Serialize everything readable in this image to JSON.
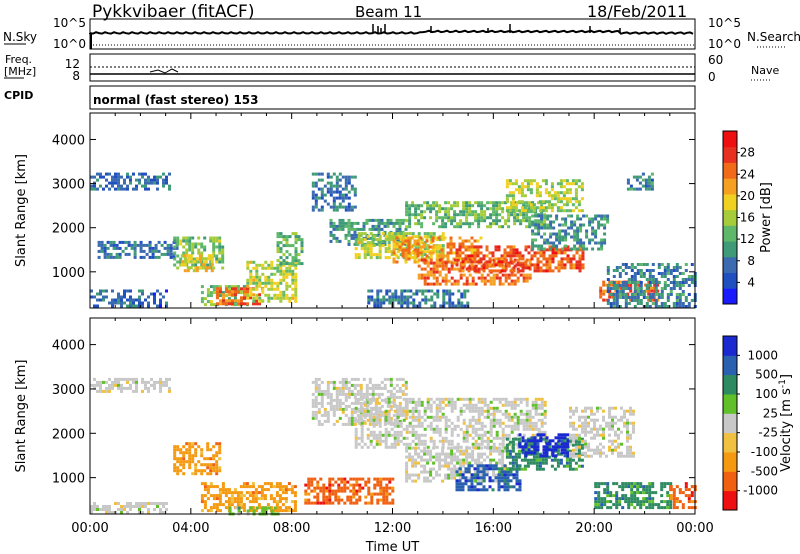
{
  "header": {
    "station": "Pykkvibaer (fitACF)",
    "beam": "Beam 11",
    "date": "18/Feb/2011"
  },
  "top_panels": {
    "nsky_label": "N.Sky",
    "nsearch_label": "N.Search",
    "noise_ticks": [
      "10^5",
      "10^0"
    ],
    "freq_label_line1": "Freq.",
    "freq_label_line2": "[MHz]",
    "freq_ticks": [
      "12",
      "8"
    ],
    "nave_label": "Nave",
    "nave_ticks": [
      "60",
      "0"
    ],
    "cpid_label": "CPID",
    "cpid_text": "normal (fast stereo) 153"
  },
  "chart_data": [
    {
      "type": "heatmap",
      "name": "power",
      "ylabel": "Slant Range [km]",
      "xlabel": "",
      "xlim": [
        "00:00",
        "00:00"
      ],
      "ylim": [
        180,
        4600
      ],
      "yticks": [
        1000,
        2000,
        3000,
        4000
      ],
      "colorbar": {
        "label": "Power [dB]",
        "ticks": [
          4,
          8,
          12,
          16,
          20,
          24,
          28
        ],
        "range": [
          0,
          32
        ],
        "colors": [
          "#1a1aff",
          "#2050c0",
          "#3a6ab0",
          "#3f9a78",
          "#5fb86a",
          "#a6cc3a",
          "#f0d020",
          "#f5a020",
          "#f06a1a",
          "#e83020",
          "#ee1010"
        ]
      },
      "regions": [
        {
          "t0": 0.0,
          "t1": 3.2,
          "r0": 2900,
          "r1": 3250,
          "v": 6
        },
        {
          "t0": 0.0,
          "t1": 3.0,
          "r0": 250,
          "r1": 600,
          "v": 5
        },
        {
          "t0": 0.3,
          "t1": 3.5,
          "r0": 1300,
          "r1": 1700,
          "v": 7
        },
        {
          "t0": 3.3,
          "t1": 5.3,
          "r0": 1100,
          "r1": 1800,
          "v": 14
        },
        {
          "t0": 3.6,
          "t1": 4.9,
          "r0": 1000,
          "r1": 1400,
          "v": 20
        },
        {
          "t0": 4.4,
          "t1": 6.3,
          "r0": 250,
          "r1": 700,
          "v": 14
        },
        {
          "t0": 5.0,
          "t1": 6.8,
          "r0": 300,
          "r1": 650,
          "v": 26
        },
        {
          "t0": 6.2,
          "t1": 8.2,
          "r0": 350,
          "r1": 1250,
          "v": 17
        },
        {
          "t0": 7.4,
          "t1": 8.4,
          "r0": 1200,
          "r1": 1900,
          "v": 12
        },
        {
          "t0": 8.8,
          "t1": 10.5,
          "r0": 2400,
          "r1": 3250,
          "v": 7
        },
        {
          "t0": 9.5,
          "t1": 12.5,
          "r0": 1600,
          "r1": 2200,
          "v": 10
        },
        {
          "t0": 10.5,
          "t1": 14.0,
          "r0": 1300,
          "r1": 1900,
          "v": 17
        },
        {
          "t0": 12.0,
          "t1": 15.5,
          "r0": 1200,
          "r1": 1800,
          "v": 23
        },
        {
          "t0": 13.0,
          "t1": 17.5,
          "r0": 700,
          "r1": 1300,
          "v": 25
        },
        {
          "t0": 14.5,
          "t1": 19.5,
          "r0": 1000,
          "r1": 1600,
          "v": 27
        },
        {
          "t0": 12.5,
          "t1": 18.0,
          "r0": 2000,
          "r1": 2600,
          "v": 13
        },
        {
          "t0": 16.5,
          "t1": 19.5,
          "r0": 2400,
          "r1": 3100,
          "v": 16
        },
        {
          "t0": 17.5,
          "t1": 20.5,
          "r0": 1500,
          "r1": 2300,
          "v": 9
        },
        {
          "t0": 20.2,
          "t1": 22.5,
          "r0": 350,
          "r1": 800,
          "v": 27
        },
        {
          "t0": 20.5,
          "t1": 24.0,
          "r0": 200,
          "r1": 1200,
          "v": 8
        },
        {
          "t0": 11.0,
          "t1": 15.0,
          "r0": 250,
          "r1": 600,
          "v": 7
        },
        {
          "t0": 21.3,
          "t1": 22.3,
          "r0": 2900,
          "r1": 3250,
          "v": 8
        }
      ]
    },
    {
      "type": "heatmap",
      "name": "velocity",
      "ylabel": "Slant Range [km]",
      "xlabel": "Time UT",
      "xticks": [
        "00:00",
        "04:00",
        "08:00",
        "12:00",
        "16:00",
        "20:00",
        "00:00"
      ],
      "ylim": [
        180,
        4600
      ],
      "yticks": [
        1000,
        2000,
        3000,
        4000
      ],
      "colorbar": {
        "label": "Velocity [m s",
        "label_sup": "-1",
        "label_end": "]",
        "ticks": [
          "-1000",
          "-500",
          "-100",
          "-25",
          "25",
          "100",
          "500",
          "1000"
        ],
        "colors": [
          "#ee1010",
          "#f06010",
          "#f59a10",
          "#f0c040",
          "#c8c8c8",
          "#5fc02a",
          "#2e8a60",
          "#2a60b0",
          "#1a2ad0"
        ]
      },
      "regions": [
        {
          "t0": 0.0,
          "t1": 3.2,
          "r0": 2950,
          "r1": 3250,
          "v": 4
        },
        {
          "t0": 0.0,
          "t1": 3.0,
          "r0": 200,
          "r1": 450,
          "v": 4
        },
        {
          "t0": 3.3,
          "t1": 5.2,
          "r0": 1100,
          "r1": 1800,
          "v": 2
        },
        {
          "t0": 4.4,
          "t1": 8.2,
          "r0": 250,
          "r1": 900,
          "v": 2
        },
        {
          "t0": 5.5,
          "t1": 7.5,
          "r0": 200,
          "r1": 350,
          "v": 5
        },
        {
          "t0": 8.5,
          "t1": 12.0,
          "r0": 400,
          "r1": 1000,
          "v": 1
        },
        {
          "t0": 8.8,
          "t1": 12.5,
          "r0": 2200,
          "r1": 3250,
          "v": 4
        },
        {
          "t0": 10.5,
          "t1": 18.0,
          "r0": 1700,
          "r1": 2800,
          "v": 4
        },
        {
          "t0": 12.5,
          "t1": 16.5,
          "r0": 900,
          "r1": 1700,
          "v": 4
        },
        {
          "t0": 14.5,
          "t1": 17.0,
          "r0": 700,
          "r1": 1300,
          "v": 7
        },
        {
          "t0": 16.5,
          "t1": 19.5,
          "r0": 1200,
          "r1": 1900,
          "v": 6
        },
        {
          "t0": 17.0,
          "t1": 19.0,
          "r0": 1500,
          "r1": 2000,
          "v": 8
        },
        {
          "t0": 19.0,
          "t1": 21.5,
          "r0": 1500,
          "r1": 2600,
          "v": 4
        },
        {
          "t0": 20.0,
          "t1": 23.0,
          "r0": 350,
          "r1": 900,
          "v": 6
        },
        {
          "t0": 23.0,
          "t1": 24.0,
          "r0": 300,
          "r1": 900,
          "v": 1
        }
      ]
    }
  ]
}
